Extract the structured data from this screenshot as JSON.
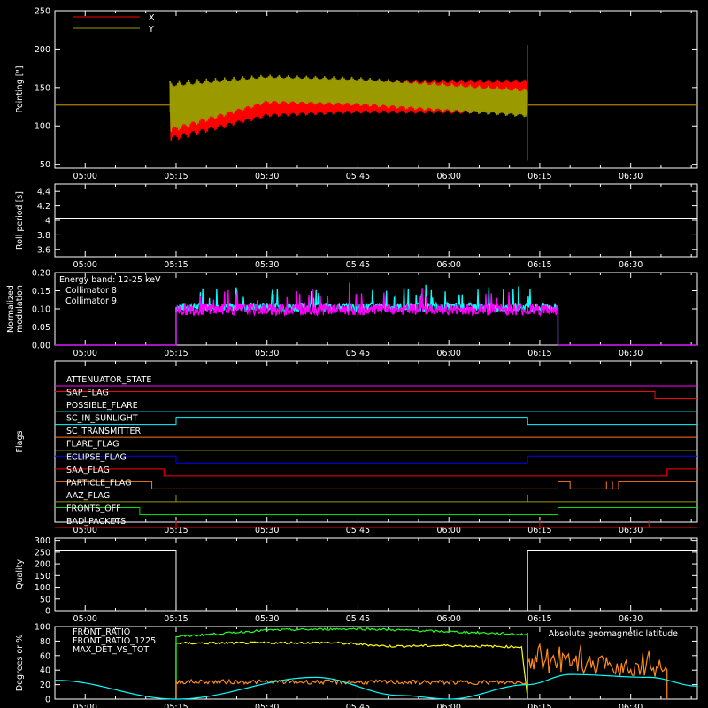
{
  "colors": {
    "background": "#000000",
    "axes": "#ffffff",
    "red": "#ff0000",
    "olive": "#9a9a00",
    "cyan": "#00ffff",
    "magenta": "#ff00ff",
    "orange": "#ff8c1a",
    "yellow": "#ffff00",
    "blue": "#0000ff",
    "green": "#00dd00",
    "bright_green": "#22ff22",
    "flag_orange": "#ff7a1a"
  },
  "time_axis": {
    "range": [
      "04:55",
      "06:41"
    ],
    "ticks": [
      "05:00",
      "05:15",
      "05:30",
      "05:45",
      "06:00",
      "06:15",
      "06:30"
    ]
  },
  "chart_data": [
    {
      "id": "pointing",
      "type": "line",
      "ylabel": "Pointing [\"]",
      "ylim": [
        45,
        250
      ],
      "yticks": [
        50,
        100,
        150,
        200,
        250
      ],
      "series": [
        {
          "name": "X",
          "color": "red",
          "segments": [
            {
              "x": [
                "04:55",
                "05:14"
              ],
              "y": 127
            },
            {
              "x": [
                "05:14",
                "06:13"
              ],
              "envelope_mean": [
                [
                  "05:14",
                  118
                ],
                [
                  "05:30",
                  133
                ],
                [
                  "05:45",
                  138
                ],
                [
                  "06:13",
                  138
                ]
              ],
              "amplitude": [
                [
                  "05:14",
                  47
                ],
                [
                  "05:30",
                  26
                ],
                [
                  "06:13",
                  27
                ]
              ]
            },
            {
              "x": [
                "06:13",
                "06:41"
              ],
              "y": 127
            }
          ]
        },
        {
          "name": "Y",
          "color": "olive",
          "segments": [
            {
              "x": [
                "04:55",
                "05:14"
              ],
              "y": 127
            },
            {
              "x": [
                "05:14",
                "06:13"
              ],
              "envelope_mean": [
                [
                  "05:14",
                  125
                ],
                [
                  "05:30",
                  148
                ],
                [
                  "05:45",
                  145
                ],
                [
                  "06:13",
                  130
                ]
              ],
              "amplitude": [
                [
                  "05:14",
                  40
                ],
                [
                  "05:30",
                  22
                ],
                [
                  "06:13",
                  22
                ]
              ]
            },
            {
              "x": [
                "06:13",
                "06:41"
              ],
              "y": 127
            }
          ]
        }
      ],
      "spikes": [
        {
          "x": "06:13",
          "ymin": 55,
          "ymax": 205
        }
      ]
    },
    {
      "id": "roll_period",
      "type": "line",
      "ylabel": "Roll period [s]",
      "ylim": [
        3.5,
        4.5
      ],
      "yticks": [
        3.6,
        3.8,
        4.0,
        4.2,
        4.4
      ],
      "series": [
        {
          "name": "",
          "color": "axes",
          "x": [
            "04:55",
            "06:41"
          ],
          "y": 4.03
        }
      ]
    },
    {
      "id": "modulation",
      "type": "line",
      "ylabel": "Normalized modulation",
      "ylim": [
        0,
        0.2
      ],
      "yticks": [
        "0.00",
        "0.05",
        "0.10",
        "0.15",
        "0.20"
      ],
      "annotations": [
        "Energy band: 12-25 keV"
      ],
      "active_range": [
        "05:15",
        "06:18"
      ],
      "series": [
        {
          "name": "Collimator 8",
          "color": "cyan",
          "baseline": 0.105,
          "spread": 0.012
        },
        {
          "name": "Collimator 9",
          "color": "magenta",
          "baseline": 0.098,
          "spread": 0.016
        }
      ]
    },
    {
      "id": "flags",
      "type": "line",
      "ylabel": "Flags",
      "series": [
        {
          "name": "ATTENUATOR_STATE",
          "color": "magenta",
          "steps": [
            [
              "04:55",
              0
            ],
            [
              "06:41",
              0
            ]
          ]
        },
        {
          "name": "SAP_FLAG",
          "color": "red",
          "steps": [
            [
              "04:55",
              1
            ],
            [
              "06:34",
              0
            ],
            [
              "06:41",
              0
            ]
          ]
        },
        {
          "name": "POSSIBLE_FLARE",
          "color": "cyan",
          "steps": [
            [
              "04:55",
              0
            ],
            [
              "06:41",
              0
            ]
          ]
        },
        {
          "name": "SC_IN_SUNLIGHT",
          "color": "cyan",
          "steps": [
            [
              "04:55",
              0
            ],
            [
              "05:15",
              1
            ],
            [
              "06:13",
              0
            ],
            [
              "06:41",
              0
            ]
          ]
        },
        {
          "name": "SC_TRANSMITTER",
          "color": "flag_orange",
          "steps": [
            [
              "04:55",
              0
            ],
            [
              "06:41",
              0
            ]
          ]
        },
        {
          "name": "FLARE_FLAG",
          "color": "yellow",
          "steps": [
            [
              "04:55",
              0
            ],
            [
              "06:41",
              0
            ]
          ]
        },
        {
          "name": "ECLIPSE_FLAG",
          "color": "blue",
          "steps": [
            [
              "04:55",
              1
            ],
            [
              "05:15",
              0
            ],
            [
              "06:13",
              1
            ],
            [
              "06:41",
              1
            ]
          ]
        },
        {
          "name": "SAA_FLAG",
          "color": "red",
          "steps": [
            [
              "04:55",
              1
            ],
            [
              "05:13",
              0
            ],
            [
              "06:36",
              1
            ],
            [
              "06:41",
              1
            ]
          ]
        },
        {
          "name": "PARTICLE_FLAG",
          "color": "flag_orange",
          "steps": [
            [
              "04:55",
              1
            ],
            [
              "05:11",
              0
            ],
            [
              "06:18",
              1
            ],
            [
              "06:20",
              0
            ],
            [
              "06:26",
              1
            ],
            [
              "06:26",
              0
            ],
            [
              "06:27",
              1
            ],
            [
              "06:27",
              0
            ],
            [
              "06:28",
              1
            ],
            [
              "06:41",
              1
            ]
          ]
        },
        {
          "name": "AAZ_FLAG",
          "color": "olive",
          "steps": [
            [
              "04:55",
              0
            ],
            [
              "05:15",
              1
            ],
            [
              "05:15",
              0
            ],
            [
              "06:13",
              1
            ],
            [
              "06:13",
              0
            ],
            [
              "06:41",
              0
            ]
          ]
        },
        {
          "name": "FRONTS_OFF",
          "color": "green",
          "steps": [
            [
              "04:55",
              1
            ],
            [
              "05:09",
              0
            ],
            [
              "06:18",
              1
            ],
            [
              "06:41",
              1
            ]
          ]
        },
        {
          "name": "BAD_PACKETS",
          "color": "red",
          "steps": [
            [
              "04:55",
              0
            ],
            [
              "05:15",
              1
            ],
            [
              "05:15",
              0
            ],
            [
              "06:15",
              1
            ],
            [
              "06:15",
              0
            ],
            [
              "06:33",
              1
            ],
            [
              "06:33",
              0
            ],
            [
              "06:41",
              0
            ]
          ]
        }
      ]
    },
    {
      "id": "quality",
      "type": "line",
      "ylabel": "Quality",
      "ylim": [
        0,
        310
      ],
      "yticks": [
        0,
        50,
        100,
        150,
        200,
        250,
        300
      ],
      "series": [
        {
          "name": "",
          "color": "axes",
          "steps": [
            [
              "04:55",
              255
            ],
            [
              "05:15",
              0
            ],
            [
              "06:13",
              255
            ],
            [
              "06:41",
              255
            ]
          ]
        }
      ]
    },
    {
      "id": "ratios",
      "type": "line",
      "ylabel": "Degrees or %",
      "ylim": [
        0,
        100
      ],
      "yticks": [
        0,
        20,
        40,
        60,
        80,
        100
      ],
      "series": [
        {
          "name": "FRONT_RATIO",
          "color": "yellow",
          "points": [
            [
              "05:15",
              0
            ],
            [
              "05:15",
              77
            ],
            [
              "05:40",
              78
            ],
            [
              "05:45",
              76
            ],
            [
              "05:50",
              73
            ],
            [
              "06:00",
              74
            ],
            [
              "06:12",
              72
            ],
            [
              "06:13",
              0
            ]
          ]
        },
        {
          "name": "FRONT_RATIO_1225",
          "color": "bright_green",
          "points": [
            [
              "05:15",
              0
            ],
            [
              "05:15",
              86
            ],
            [
              "05:30",
              95
            ],
            [
              "05:45",
              97
            ],
            [
              "06:00",
              93
            ],
            [
              "06:13",
              89
            ],
            [
              "06:13",
              0
            ]
          ]
        },
        {
          "name": "MAX_DET_VS_TOT",
          "color": "orange",
          "points": [
            [
              "05:15",
              0
            ],
            [
              "05:15",
              24
            ],
            [
              "06:13",
              23
            ],
            [
              "06:13",
              50
            ],
            [
              "06:36",
              44
            ],
            [
              "06:36",
              0
            ]
          ]
        },
        {
          "name": "Absolute geomagnetic latitude",
          "color": "cyan",
          "points": [
            [
              "04:55",
              26
            ],
            [
              "05:15",
              0
            ],
            [
              "05:38",
              30
            ],
            [
              "05:52",
              5
            ],
            [
              "06:00",
              0
            ],
            [
              "06:13",
              20
            ],
            [
              "06:20",
              34
            ],
            [
              "06:33",
              30
            ],
            [
              "06:41",
              18
            ]
          ]
        }
      ]
    }
  ]
}
